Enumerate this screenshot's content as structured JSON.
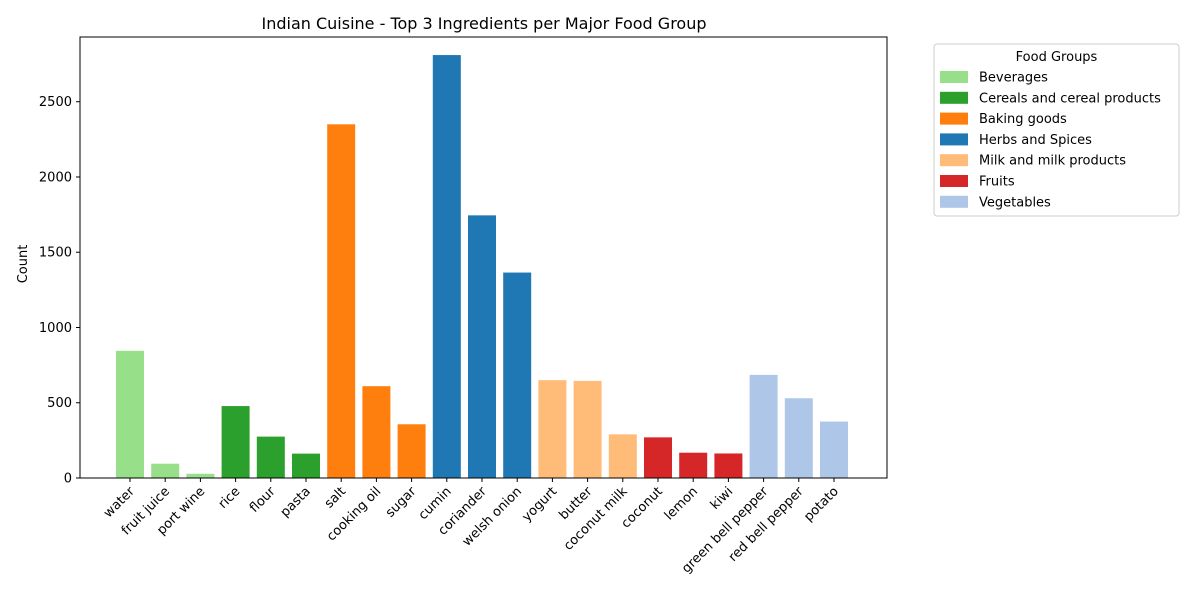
{
  "chart_data": {
    "type": "bar",
    "title": "Indian Cuisine - Top 3 Ingredients per Major Food Group",
    "xlabel": "",
    "ylabel": "Count",
    "ylim": [
      0,
      2930
    ],
    "yticks": [
      0,
      500,
      1000,
      1500,
      2000,
      2500
    ],
    "grid": false,
    "legend": {
      "title": "Food Groups",
      "placement": "outside-right-top",
      "entries": [
        {
          "name": "Beverages",
          "color": "#98df8a"
        },
        {
          "name": "Cereals and cereal products",
          "color": "#2ca02c"
        },
        {
          "name": "Baking goods",
          "color": "#ff7f0e"
        },
        {
          "name": "Herbs and Spices",
          "color": "#1f77b4"
        },
        {
          "name": "Milk and milk products",
          "color": "#ffbb78"
        },
        {
          "name": "Fruits",
          "color": "#d62728"
        },
        {
          "name": "Vegetables",
          "color": "#aec7e8"
        }
      ]
    },
    "categories": [
      "water",
      "fruit juice",
      "port wine",
      "rice",
      "flour",
      "pasta",
      "salt",
      "cooking oil",
      "sugar",
      "cumin",
      "coriander",
      "welsh onion",
      "yogurt",
      "butter",
      "coconut milk",
      "coconut",
      "lemon",
      "kiwi",
      "green bell pepper",
      "red bell pepper",
      "potato"
    ],
    "values": [
      845,
      95,
      28,
      478,
      275,
      162,
      2350,
      610,
      357,
      2810,
      1745,
      1365,
      650,
      645,
      290,
      270,
      168,
      163,
      685,
      530,
      375
    ],
    "groups": [
      "Beverages",
      "Beverages",
      "Beverages",
      "Cereals and cereal products",
      "Cereals and cereal products",
      "Cereals and cereal products",
      "Baking goods",
      "Baking goods",
      "Baking goods",
      "Herbs and Spices",
      "Herbs and Spices",
      "Herbs and Spices",
      "Milk and milk products",
      "Milk and milk products",
      "Milk and milk products",
      "Fruits",
      "Fruits",
      "Fruits",
      "Vegetables",
      "Vegetables",
      "Vegetables"
    ]
  }
}
